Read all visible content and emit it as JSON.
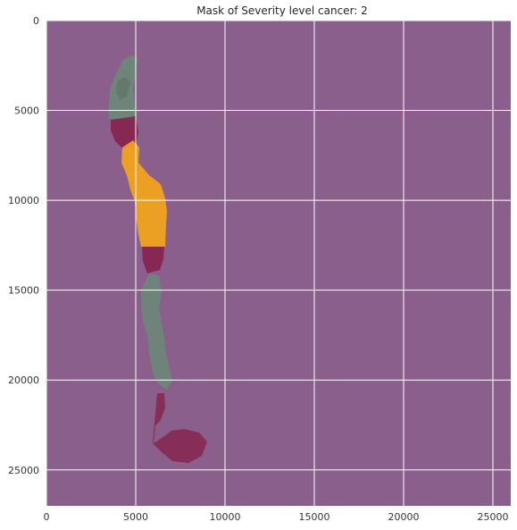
{
  "chart_data": {
    "type": "heatmap",
    "title": "Mask of Severity level cancer: 2",
    "xlabel": "",
    "ylabel": "",
    "xlim": [
      0,
      26000
    ],
    "ylim": [
      27000,
      0
    ],
    "y_inverted": true,
    "xticks": [
      0,
      5000,
      10000,
      15000,
      20000,
      25000
    ],
    "yticks": [
      0,
      5000,
      10000,
      15000,
      20000,
      25000
    ],
    "grid": true,
    "colors": {
      "background": "#8a5f8c",
      "grid": "#ffffff",
      "benign_tissue": "#6b8a78",
      "non_cancer_region": "#851f49",
      "severity_region": "#f0a21e",
      "tissue_shadow": "#5f6f66"
    },
    "regions": [
      {
        "class": "benign_tissue",
        "y_range": [
          2000,
          6000
        ]
      },
      {
        "class": "non_cancer_region",
        "y_range": [
          6000,
          7600
        ]
      },
      {
        "class": "severity_region",
        "y_range": [
          6900,
          12700
        ]
      },
      {
        "class": "non_cancer_region",
        "y_range": [
          12700,
          14200
        ]
      },
      {
        "class": "benign_tissue",
        "y_range": [
          14200,
          20300
        ]
      },
      {
        "class": "non_cancer_region",
        "y_range": [
          20600,
          24900
        ]
      }
    ]
  }
}
